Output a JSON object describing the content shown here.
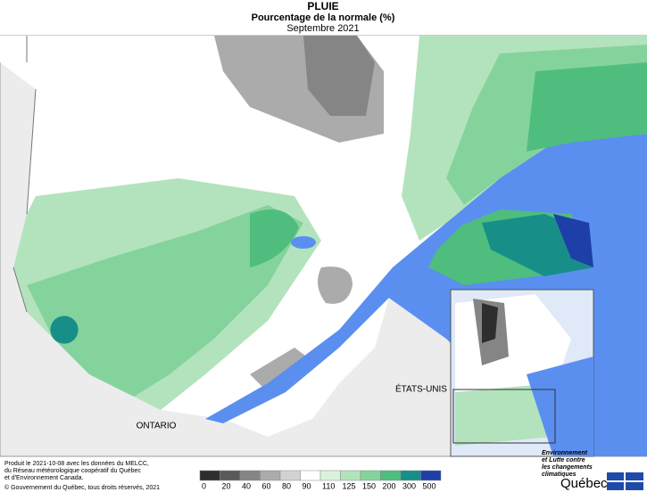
{
  "header": {
    "title": "PLUIE",
    "subtitle": "Pourcentage de la normale (%)",
    "period": "Septembre 2021"
  },
  "map": {
    "labels": [
      "ONTARIO",
      "ÉTATS-UNIS"
    ]
  },
  "legend": {
    "ticks": [
      0,
      20,
      40,
      60,
      80,
      90,
      110,
      125,
      150,
      200,
      300,
      500
    ],
    "colors": [
      "#2e2e2e",
      "#5a5a5a",
      "#858585",
      "#ababab",
      "#d2d2d2",
      "#ffffff",
      "#d9f2dc",
      "#b3e3bd",
      "#85d39c",
      "#4fbd7e",
      "#178f88",
      "#1f3fa8"
    ]
  },
  "footer": {
    "lines": [
      "Produit le 2021-10-08 avec les données du MELCC,",
      "du Réseau météorologique coopératif du Québec",
      "et d'Environnement Canada."
    ],
    "copyright": "© Gouvernement du Québec, tous droits réservés, 2021"
  },
  "logo": {
    "ministry": [
      "Environnement",
      "et Lutte contre",
      "les changements",
      "climatiques"
    ],
    "name": "Québec"
  }
}
